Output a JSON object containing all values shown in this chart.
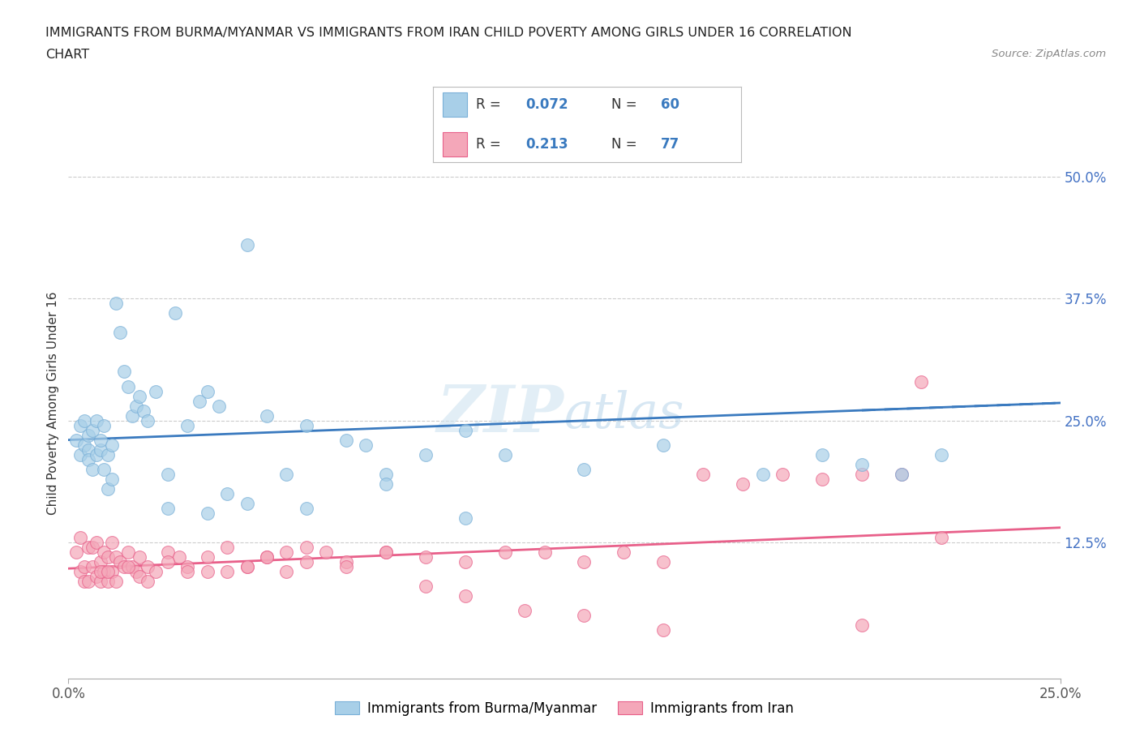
{
  "title_line1": "IMMIGRANTS FROM BURMA/MYANMAR VS IMMIGRANTS FROM IRAN CHILD POVERTY AMONG GIRLS UNDER 16 CORRELATION",
  "title_line2": "CHART",
  "source_text": "Source: ZipAtlas.com",
  "ylabel": "Child Poverty Among Girls Under 16",
  "xlim": [
    0.0,
    0.25
  ],
  "ylim": [
    -0.02,
    0.55
  ],
  "color_blue": "#a8cfe8",
  "color_pink": "#f4a7b9",
  "line_color_blue": "#3a7abf",
  "line_color_pink": "#e8608a",
  "dot_edge_blue": "#7ab0d8",
  "dot_edge_pink": "#e8608a",
  "grid_color": "#cccccc",
  "background_color": "#ffffff",
  "watermark": "ZIPatlas",
  "blue_trend_x": [
    0.0,
    0.25
  ],
  "blue_trend_y": [
    0.23,
    0.268
  ],
  "pink_trend_x": [
    0.0,
    0.25
  ],
  "pink_trend_y": [
    0.098,
    0.14
  ],
  "blue_x": [
    0.002,
    0.003,
    0.003,
    0.004,
    0.004,
    0.005,
    0.005,
    0.005,
    0.006,
    0.006,
    0.007,
    0.007,
    0.008,
    0.008,
    0.009,
    0.009,
    0.01,
    0.01,
    0.011,
    0.011,
    0.012,
    0.013,
    0.014,
    0.015,
    0.016,
    0.017,
    0.018,
    0.019,
    0.02,
    0.022,
    0.025,
    0.027,
    0.03,
    0.033,
    0.035,
    0.038,
    0.04,
    0.045,
    0.05,
    0.055,
    0.06,
    0.07,
    0.075,
    0.08,
    0.09,
    0.1,
    0.11,
    0.13,
    0.15,
    0.175,
    0.19,
    0.2,
    0.21,
    0.22,
    0.025,
    0.035,
    0.045,
    0.06,
    0.08,
    0.1
  ],
  "blue_y": [
    0.23,
    0.245,
    0.215,
    0.25,
    0.225,
    0.235,
    0.22,
    0.21,
    0.24,
    0.2,
    0.25,
    0.215,
    0.22,
    0.23,
    0.2,
    0.245,
    0.215,
    0.18,
    0.225,
    0.19,
    0.37,
    0.34,
    0.3,
    0.285,
    0.255,
    0.265,
    0.275,
    0.26,
    0.25,
    0.28,
    0.195,
    0.36,
    0.245,
    0.27,
    0.28,
    0.265,
    0.175,
    0.43,
    0.255,
    0.195,
    0.245,
    0.23,
    0.225,
    0.195,
    0.215,
    0.24,
    0.215,
    0.2,
    0.225,
    0.195,
    0.215,
    0.205,
    0.195,
    0.215,
    0.16,
    0.155,
    0.165,
    0.16,
    0.185,
    0.15
  ],
  "pink_x": [
    0.002,
    0.003,
    0.003,
    0.004,
    0.004,
    0.005,
    0.005,
    0.006,
    0.006,
    0.007,
    0.007,
    0.008,
    0.008,
    0.009,
    0.009,
    0.01,
    0.01,
    0.011,
    0.011,
    0.012,
    0.013,
    0.014,
    0.015,
    0.016,
    0.017,
    0.018,
    0.02,
    0.022,
    0.025,
    0.028,
    0.03,
    0.035,
    0.04,
    0.045,
    0.05,
    0.055,
    0.06,
    0.065,
    0.07,
    0.08,
    0.09,
    0.1,
    0.11,
    0.12,
    0.13,
    0.14,
    0.15,
    0.16,
    0.17,
    0.18,
    0.19,
    0.2,
    0.21,
    0.215,
    0.22,
    0.008,
    0.01,
    0.012,
    0.015,
    0.018,
    0.02,
    0.025,
    0.03,
    0.035,
    0.04,
    0.045,
    0.05,
    0.06,
    0.07,
    0.08,
    0.09,
    0.1,
    0.115,
    0.13,
    0.15,
    0.2,
    0.055
  ],
  "pink_y": [
    0.115,
    0.095,
    0.13,
    0.085,
    0.1,
    0.12,
    0.085,
    0.1,
    0.12,
    0.09,
    0.125,
    0.105,
    0.085,
    0.115,
    0.095,
    0.11,
    0.085,
    0.125,
    0.095,
    0.11,
    0.105,
    0.1,
    0.115,
    0.1,
    0.095,
    0.11,
    0.1,
    0.095,
    0.115,
    0.11,
    0.1,
    0.095,
    0.095,
    0.1,
    0.11,
    0.095,
    0.105,
    0.115,
    0.105,
    0.115,
    0.11,
    0.105,
    0.115,
    0.115,
    0.105,
    0.115,
    0.105,
    0.195,
    0.185,
    0.195,
    0.19,
    0.195,
    0.195,
    0.29,
    0.13,
    0.095,
    0.095,
    0.085,
    0.1,
    0.09,
    0.085,
    0.105,
    0.095,
    0.11,
    0.12,
    0.1,
    0.11,
    0.12,
    0.1,
    0.115,
    0.08,
    0.07,
    0.055,
    0.05,
    0.035,
    0.04,
    0.115
  ]
}
